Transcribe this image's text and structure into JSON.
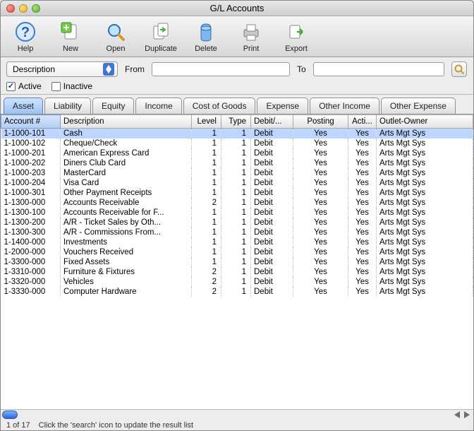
{
  "window": {
    "title": "G/L Accounts"
  },
  "toolbar": {
    "help": {
      "label": "Help"
    },
    "new": {
      "label": "New"
    },
    "open": {
      "label": "Open"
    },
    "duplicate": {
      "label": "Duplicate"
    },
    "delete": {
      "label": "Delete"
    },
    "print": {
      "label": "Print"
    },
    "export": {
      "label": "Export"
    }
  },
  "filter": {
    "field_selector": "Description",
    "from_label": "From",
    "to_label": "To",
    "from_value": "",
    "to_value": "",
    "active_label": "Active",
    "inactive_label": "Inactive",
    "active_checked": true,
    "inactive_checked": false
  },
  "tabs": [
    {
      "label": "Asset",
      "active": true
    },
    {
      "label": "Liability",
      "active": false
    },
    {
      "label": "Income",
      "active": false
    },
    {
      "label": "Cost of Goods",
      "active": false
    },
    {
      "label": "Expense",
      "active": false
    },
    {
      "label": "Other Income",
      "active": false
    },
    {
      "label": "Other Expense",
      "active": false
    }
  ],
  "tab_equity": "Equity",
  "columns": {
    "account": "Account #",
    "description": "Description",
    "level": "Level",
    "type": "Type",
    "debitcredit": "Debit/...",
    "posting": "Posting",
    "active": "Acti...",
    "owner": "Outlet-Owner"
  },
  "sorted_column": "account",
  "rows": [
    {
      "acct": "1-1000-101",
      "desc": "Cash",
      "level": 1,
      "type": 1,
      "dc": "Debit",
      "post": "Yes",
      "active": "Yes",
      "owner": "Arts Mgt Sys",
      "selected": true
    },
    {
      "acct": "1-1000-102",
      "desc": "Cheque/Check",
      "level": 1,
      "type": 1,
      "dc": "Debit",
      "post": "Yes",
      "active": "Yes",
      "owner": "Arts Mgt Sys"
    },
    {
      "acct": "1-1000-201",
      "desc": "American Express Card",
      "level": 1,
      "type": 1,
      "dc": "Debit",
      "post": "Yes",
      "active": "Yes",
      "owner": "Arts Mgt Sys"
    },
    {
      "acct": "1-1000-202",
      "desc": "Diners Club Card",
      "level": 1,
      "type": 1,
      "dc": "Debit",
      "post": "Yes",
      "active": "Yes",
      "owner": "Arts Mgt Sys"
    },
    {
      "acct": "1-1000-203",
      "desc": "MasterCard",
      "level": 1,
      "type": 1,
      "dc": "Debit",
      "post": "Yes",
      "active": "Yes",
      "owner": "Arts Mgt Sys"
    },
    {
      "acct": "1-1000-204",
      "desc": "Visa Card",
      "level": 1,
      "type": 1,
      "dc": "Debit",
      "post": "Yes",
      "active": "Yes",
      "owner": "Arts Mgt Sys"
    },
    {
      "acct": "1-1000-301",
      "desc": "Other Payment Receipts",
      "level": 1,
      "type": 1,
      "dc": "Debit",
      "post": "Yes",
      "active": "Yes",
      "owner": "Arts Mgt Sys"
    },
    {
      "acct": "1-1300-000",
      "desc": "Accounts Receivable",
      "level": 2,
      "type": 1,
      "dc": "Debit",
      "post": "Yes",
      "active": "Yes",
      "owner": "Arts Mgt Sys"
    },
    {
      "acct": "1-1300-100",
      "desc": "Accounts Receivable for F...",
      "level": 1,
      "type": 1,
      "dc": "Debit",
      "post": "Yes",
      "active": "Yes",
      "owner": "Arts Mgt Sys"
    },
    {
      "acct": "1-1300-200",
      "desc": "A/R - Ticket Sales by Oth...",
      "level": 1,
      "type": 1,
      "dc": "Debit",
      "post": "Yes",
      "active": "Yes",
      "owner": "Arts Mgt Sys"
    },
    {
      "acct": "1-1300-300",
      "desc": "A/R - Commissions From...",
      "level": 1,
      "type": 1,
      "dc": "Debit",
      "post": "Yes",
      "active": "Yes",
      "owner": "Arts Mgt Sys"
    },
    {
      "acct": "1-1400-000",
      "desc": "Investments",
      "level": 1,
      "type": 1,
      "dc": "Debit",
      "post": "Yes",
      "active": "Yes",
      "owner": "Arts Mgt Sys"
    },
    {
      "acct": "1-2000-000",
      "desc": "Vouchers Received",
      "level": 1,
      "type": 1,
      "dc": "Debit",
      "post": "Yes",
      "active": "Yes",
      "owner": "Arts Mgt Sys"
    },
    {
      "acct": "1-3300-000",
      "desc": "Fixed Assets",
      "level": 1,
      "type": 1,
      "dc": "Debit",
      "post": "Yes",
      "active": "Yes",
      "owner": "Arts Mgt Sys"
    },
    {
      "acct": "1-3310-000",
      "desc": "Furniture & Fixtures",
      "level": 2,
      "type": 1,
      "dc": "Debit",
      "post": "Yes",
      "active": "Yes",
      "owner": "Arts Mgt Sys"
    },
    {
      "acct": "1-3320-000",
      "desc": "Vehicles",
      "level": 2,
      "type": 1,
      "dc": "Debit",
      "post": "Yes",
      "active": "Yes",
      "owner": "Arts Mgt Sys"
    },
    {
      "acct": "1-3330-000",
      "desc": "Computer Hardware",
      "level": 2,
      "type": 1,
      "dc": "Debit",
      "post": "Yes",
      "active": "Yes",
      "owner": "Arts Mgt Sys"
    }
  ],
  "status": {
    "count": "1 of 17",
    "hint": "Click the 'search' icon to update the result list"
  },
  "colors": {
    "selection": "#bcd6ff",
    "tab_active_top": "#cfe3ff",
    "tab_active_bottom": "#9cc1f5",
    "accent_blue": "#3f76d6"
  }
}
